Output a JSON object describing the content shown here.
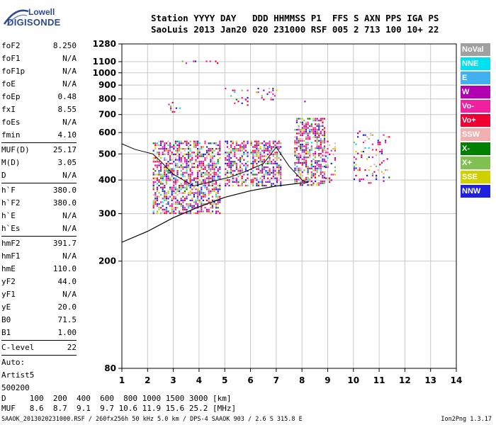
{
  "logo": {
    "line1": "Lowell",
    "line2": "DIGISONDE"
  },
  "header": {
    "line1": "Station YYYY DAY   DDD HHMMSS P1  FFS S AXN PPS IGA PS",
    "line2": "SaoLuis 2013 Jan20 020 231000 RSF 005 2 713 100 10+ 22"
  },
  "params": [
    [
      {
        "label": "foF2",
        "value": "8.250"
      },
      {
        "label": "foF1",
        "value": "N/A"
      },
      {
        "label": "foF1p",
        "value": "N/A"
      },
      {
        "label": "foE",
        "value": "N/A"
      },
      {
        "label": "foEp",
        "value": "0.48"
      },
      {
        "label": "fxI",
        "value": "8.55"
      },
      {
        "label": "foEs",
        "value": "N/A"
      },
      {
        "label": "fmin",
        "value": "4.10"
      }
    ],
    [
      {
        "label": "MUF(D)",
        "value": "25.17"
      },
      {
        "label": "M(D)",
        "value": "3.05"
      },
      {
        "label": "D",
        "value": "N/A"
      }
    ],
    [
      {
        "label": "h`F",
        "value": "380.0"
      },
      {
        "label": "h`F2",
        "value": "380.0"
      },
      {
        "label": "h`E",
        "value": "N/A"
      },
      {
        "label": "h`Es",
        "value": "N/A"
      }
    ],
    [
      {
        "label": "hmF2",
        "value": "391.7"
      },
      {
        "label": "hmF1",
        "value": "N/A"
      },
      {
        "label": "hmE",
        "value": "110.0"
      },
      {
        "label": "yF2",
        "value": "44.0"
      },
      {
        "label": "yF1",
        "value": "N/A"
      },
      {
        "label": "yE",
        "value": "20.0"
      },
      {
        "label": "B0",
        "value": "71.5"
      },
      {
        "label": "B1",
        "value": "1.00"
      }
    ],
    [
      {
        "label": "C-level",
        "value": "22"
      }
    ]
  ],
  "auto": {
    "line1": "Auto:",
    "line2": "Artist5",
    "line3": "500200"
  },
  "legend": [
    {
      "label": "NoVal",
      "color": "#a0a0a0"
    },
    {
      "label": "NNE",
      "color": "#00e0f0"
    },
    {
      "label": "E",
      "color": "#40b0f0"
    },
    {
      "label": "W",
      "color": "#b000b0"
    },
    {
      "label": "Vo-",
      "color": "#f0209f"
    },
    {
      "label": "Vo+",
      "color": "#f00030"
    },
    {
      "label": "SSW",
      "color": "#f0b0b0"
    },
    {
      "label": "X-",
      "color": "#008000"
    },
    {
      "label": "X+",
      "color": "#80c050"
    },
    {
      "label": "SSE",
      "color": "#d0d000"
    },
    {
      "label": "NNW",
      "color": "#2020e0"
    }
  ],
  "muf_table": {
    "d_line": "D     100  200  400  600  800 1000 1500 3000 [km]",
    "muf_line": "MUF   8.6  8.7  9.1  9.7 10.6 11.9 15.6 25.2 [MHz]"
  },
  "footer": {
    "left": "SAAOK_2013020231000.RSF / 260fx256h 50 kHz 5.0 km / DPS-4 SAAOK 903 / 2.6 S 315.8 E",
    "right": "Ion2Png 1.3.17"
  },
  "chart_data": {
    "type": "scatter",
    "title": "",
    "xlabel": "",
    "ylabel": "",
    "x_unit": "MHz",
    "y_unit": "km",
    "xlim": [
      1,
      14
    ],
    "ylim": [
      80,
      1280
    ],
    "y_scale": "log",
    "x_ticks": [
      "1",
      "2",
      "3",
      "4",
      "5",
      "6",
      "7",
      "8",
      "9",
      "10",
      "11",
      "12",
      "13",
      "14"
    ],
    "y_ticks": [
      80,
      200,
      300,
      400,
      500,
      600,
      700,
      800,
      900,
      1000,
      1100,
      1280
    ],
    "grid": true,
    "clusters": [
      {
        "x_range": [
          2.2,
          4.8
        ],
        "y_range": [
          300,
          560
        ],
        "density": "high"
      },
      {
        "x_range": [
          5.0,
          5.9
        ],
        "y_range": [
          380,
          560
        ],
        "density": "high"
      },
      {
        "x_range": [
          6.0,
          7.2
        ],
        "y_range": [
          380,
          560
        ],
        "density": "high"
      },
      {
        "x_range": [
          7.7,
          8.9
        ],
        "y_range": [
          380,
          680
        ],
        "density": "high"
      },
      {
        "x_range": [
          8.9,
          9.3
        ],
        "y_range": [
          390,
          560
        ],
        "density": "medium"
      },
      {
        "x_range": [
          10.0,
          11.4
        ],
        "y_range": [
          390,
          610
        ],
        "density": "low"
      },
      {
        "x_range": [
          2.8,
          3.3
        ],
        "y_range": [
          690,
          780
        ],
        "density": "low"
      },
      {
        "x_range": [
          5.0,
          5.9
        ],
        "y_range": [
          760,
          880
        ],
        "density": "low"
      },
      {
        "x_range": [
          6.2,
          7.0
        ],
        "y_range": [
          800,
          880
        ],
        "density": "low"
      },
      {
        "x_range": [
          7.8,
          8.8
        ],
        "y_range": [
          780,
          800
        ],
        "density": "low"
      },
      {
        "x_range": [
          2.9,
          4.7
        ],
        "y_range": [
          1090,
          1110
        ],
        "density": "low"
      }
    ],
    "true_height_profile": [
      {
        "x": 1,
        "y": 235
      },
      {
        "x": 2,
        "y": 258
      },
      {
        "x": 3,
        "y": 290
      },
      {
        "x": 4,
        "y": 318
      },
      {
        "x": 5,
        "y": 345
      },
      {
        "x": 6,
        "y": 365
      },
      {
        "x": 7,
        "y": 380
      },
      {
        "x": 8,
        "y": 390
      },
      {
        "x": 8.25,
        "y": 392
      }
    ],
    "trace_curve": [
      {
        "x": 1,
        "y": 545
      },
      {
        "x": 1.5,
        "y": 520
      },
      {
        "x": 2.2,
        "y": 500
      },
      {
        "x": 2.5,
        "y": 470
      },
      {
        "x": 3,
        "y": 420
      },
      {
        "x": 3.8,
        "y": 380
      },
      {
        "x": 4.5,
        "y": 395
      },
      {
        "x": 5.2,
        "y": 410
      },
      {
        "x": 5.8,
        "y": 430
      },
      {
        "x": 6.5,
        "y": 460
      },
      {
        "x": 7,
        "y": 530
      },
      {
        "x": 7.5,
        "y": 450
      },
      {
        "x": 8,
        "y": 400
      },
      {
        "x": 8.25,
        "y": 392
      }
    ]
  }
}
